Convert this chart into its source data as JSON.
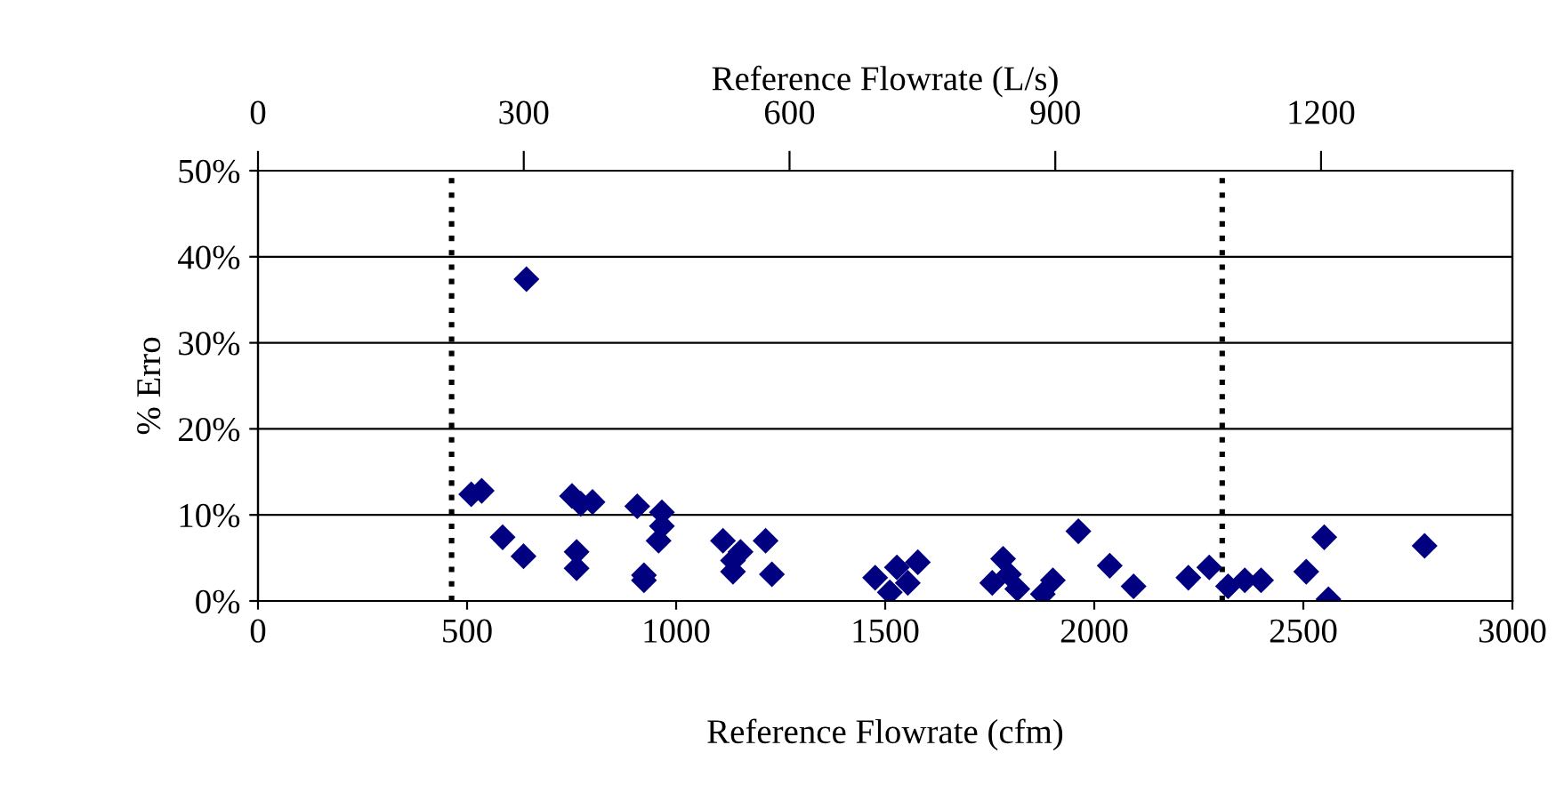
{
  "chart_data": {
    "type": "scatter",
    "xlabel": "Reference Flowrate (cfm)",
    "x2label": "Reference Flowrate (L/s)",
    "ylabel": "% Erro",
    "xlim": [
      0,
      3000
    ],
    "xticks": [
      0,
      500,
      1000,
      1500,
      2000,
      2500,
      3000
    ],
    "x2lim": [
      0,
      1416
    ],
    "x2ticks": [
      0,
      300,
      600,
      900,
      1200
    ],
    "ylim": [
      0,
      50
    ],
    "yticks": [
      {
        "value": 0,
        "label": "0%"
      },
      {
        "value": 10,
        "label": "10%"
      },
      {
        "value": 20,
        "label": "20%"
      },
      {
        "value": 30,
        "label": "30%"
      },
      {
        "value": 40,
        "label": "40%"
      },
      {
        "value": 50,
        "label": "50%"
      }
    ],
    "grid": "y",
    "marker": "diamond",
    "ref_lines": [
      {
        "axis": "x",
        "value": 463,
        "color": "#000000",
        "line_style": "dotted"
      },
      {
        "axis": "x",
        "value": 2306,
        "color": "#000000",
        "line_style": "dotted"
      }
    ],
    "series": [
      {
        "color": "#000080",
        "x": [
          642,
          510,
          535,
          585,
          635,
          751,
          772,
          800,
          762,
          762,
          907,
          966,
          966,
          958,
          923,
          923,
          1112,
          1154,
          1136,
          1136,
          1214,
          1229,
          1476,
          1511,
          1528,
          1554,
          1578,
          1756,
          1782,
          1796,
          1816,
          1877,
          1901,
          1962,
          2037,
          2094,
          2225,
          2275,
          2320,
          2360,
          2399,
          2507,
          2550,
          2560,
          2790
        ],
        "values": [
          37.4,
          12.4,
          12.8,
          7.4,
          5.2,
          12.2,
          11.3,
          11.5,
          5.7,
          3.8,
          11.0,
          10.3,
          8.7,
          7.0,
          3.0,
          2.4,
          7.0,
          5.7,
          4.7,
          3.4,
          7.0,
          3.1,
          2.7,
          1.0,
          3.9,
          2.1,
          4.5,
          2.1,
          4.9,
          3.1,
          1.4,
          0.8,
          2.4,
          8.1,
          4.1,
          1.7,
          2.7,
          3.9,
          1.7,
          2.4,
          2.4,
          3.4,
          7.4,
          0.2,
          6.4
        ]
      }
    ]
  }
}
